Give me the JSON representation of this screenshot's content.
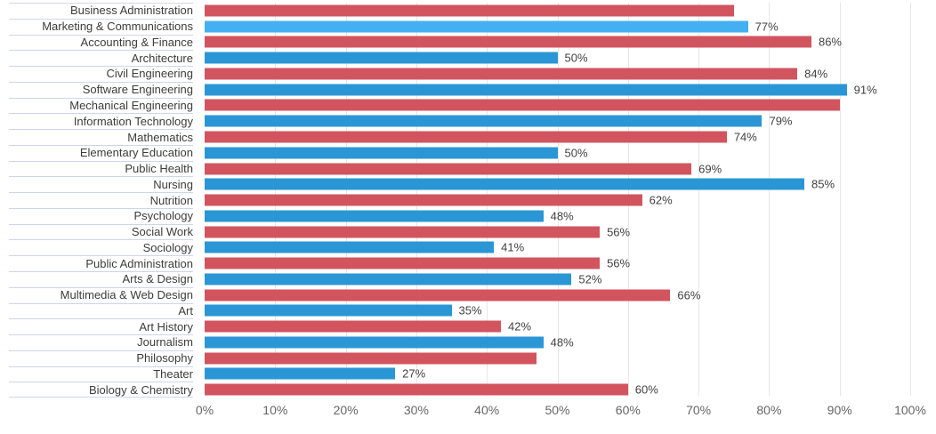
{
  "colors": {
    "red": "#d2545f",
    "blue": "#2a96d5",
    "lightblue": "#44b0f1",
    "grid": "#e7e7e7",
    "separator": "#ccd6eb",
    "category_text": "#3c3c3c",
    "value_text": "#414141",
    "axis_text": "#666666"
  },
  "chart_data": {
    "type": "bar",
    "orientation": "horizontal",
    "title": "",
    "xlabel": "",
    "ylabel": "",
    "xlim": [
      0,
      100
    ],
    "grid": "vertical-only",
    "legend": "none",
    "x_axis_ticks": [
      "0%",
      "10%",
      "20%",
      "30%",
      "40%",
      "50%",
      "60%",
      "70%",
      "80%",
      "90%",
      "100%"
    ],
    "categories": [
      "Business Administration",
      "Marketing & Communications",
      "Accounting & Finance",
      "Architecture",
      "Civil Engineering",
      "Software Engineering",
      "Mechanical Engineering",
      "Information Technology",
      "Mathematics",
      "Elementary Education",
      "Public Health",
      "Nursing",
      "Nutrition",
      "Psychology",
      "Social Work",
      "Sociology",
      "Public Administration",
      "Arts & Design",
      "Multimedia & Web Design",
      "Art",
      "Art History",
      "Journalism",
      "Philosophy",
      "Theater",
      "Biology & Chemistry"
    ],
    "values": [
      75,
      77,
      86,
      50,
      84,
      91,
      90,
      79,
      74,
      50,
      69,
      85,
      62,
      48,
      56,
      41,
      56,
      52,
      66,
      35,
      42,
      48,
      47,
      27,
      60
    ],
    "rows": [
      {
        "category": "Business Administration",
        "value": 75,
        "color": "red",
        "value_label": ""
      },
      {
        "category": "Marketing & Communications",
        "value": 77,
        "color": "lightblue",
        "value_label": "77%"
      },
      {
        "category": "Accounting & Finance",
        "value": 86,
        "color": "red",
        "value_label": "86%"
      },
      {
        "category": "Architecture",
        "value": 50,
        "color": "blue",
        "value_label": "50%"
      },
      {
        "category": "Civil Engineering",
        "value": 84,
        "color": "red",
        "value_label": "84%"
      },
      {
        "category": "Software Engineering",
        "value": 91,
        "color": "blue",
        "value_label": "91%"
      },
      {
        "category": "Mechanical Engineering",
        "value": 90,
        "color": "red",
        "value_label": ""
      },
      {
        "category": "Information Technology",
        "value": 79,
        "color": "blue",
        "value_label": "79%"
      },
      {
        "category": "Mathematics",
        "value": 74,
        "color": "red",
        "value_label": "74%"
      },
      {
        "category": "Elementary Education",
        "value": 50,
        "color": "blue",
        "value_label": "50%"
      },
      {
        "category": "Public Health",
        "value": 69,
        "color": "red",
        "value_label": "69%"
      },
      {
        "category": "Nursing",
        "value": 85,
        "color": "blue",
        "value_label": "85%"
      },
      {
        "category": "Nutrition",
        "value": 62,
        "color": "red",
        "value_label": "62%"
      },
      {
        "category": "Psychology",
        "value": 48,
        "color": "blue",
        "value_label": "48%"
      },
      {
        "category": "Social Work",
        "value": 56,
        "color": "red",
        "value_label": "56%"
      },
      {
        "category": "Sociology",
        "value": 41,
        "color": "blue",
        "value_label": "41%"
      },
      {
        "category": "Public Administration",
        "value": 56,
        "color": "red",
        "value_label": "56%"
      },
      {
        "category": "Arts & Design",
        "value": 52,
        "color": "blue",
        "value_label": "52%"
      },
      {
        "category": "Multimedia & Web Design",
        "value": 66,
        "color": "red",
        "value_label": "66%"
      },
      {
        "category": "Art",
        "value": 35,
        "color": "blue",
        "value_label": "35%"
      },
      {
        "category": "Art History",
        "value": 42,
        "color": "red",
        "value_label": "42%"
      },
      {
        "category": "Journalism",
        "value": 48,
        "color": "blue",
        "value_label": "48%"
      },
      {
        "category": "Philosophy",
        "value": 47,
        "color": "red",
        "value_label": ""
      },
      {
        "category": "Theater",
        "value": 27,
        "color": "blue",
        "value_label": "27%"
      },
      {
        "category": "Biology & Chemistry",
        "value": 60,
        "color": "red",
        "value_label": "60%"
      }
    ]
  }
}
